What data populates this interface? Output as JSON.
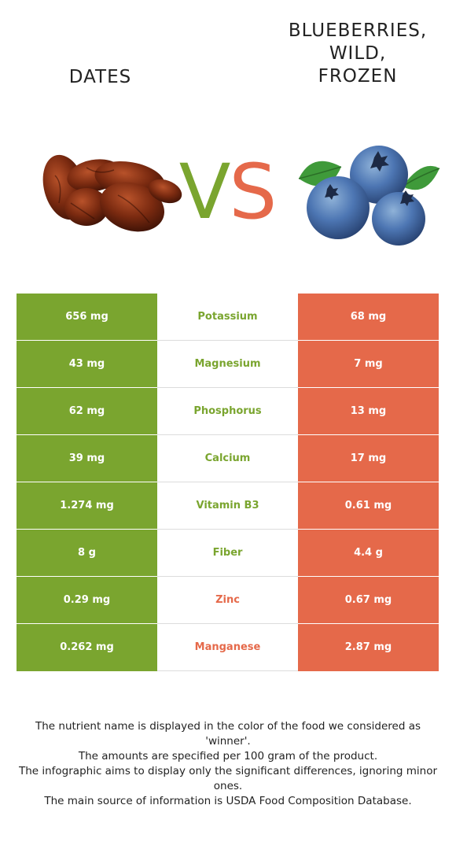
{
  "foods": {
    "left": {
      "name": "DATES",
      "color": "#7aa52f",
      "image_icon": "dates-image"
    },
    "right": {
      "name": "BLUEBERRIES,\nWILD,\nFROZEN",
      "color": "#e5694a",
      "image_icon": "blueberries-image"
    }
  },
  "vs": {
    "v": "V",
    "s": "S"
  },
  "rows": [
    {
      "left": "656 mg",
      "nutrient": "Potassium",
      "right": "68 mg",
      "winner": "left"
    },
    {
      "left": "43 mg",
      "nutrient": "Magnesium",
      "right": "7 mg",
      "winner": "left"
    },
    {
      "left": "62 mg",
      "nutrient": "Phosphorus",
      "right": "13 mg",
      "winner": "left"
    },
    {
      "left": "39 mg",
      "nutrient": "Calcium",
      "right": "17 mg",
      "winner": "left"
    },
    {
      "left": "1.274 mg",
      "nutrient": "Vitamin B3",
      "right": "0.61 mg",
      "winner": "left"
    },
    {
      "left": "8 g",
      "nutrient": "Fiber",
      "right": "4.4 g",
      "winner": "left"
    },
    {
      "left": "0.29 mg",
      "nutrient": "Zinc",
      "right": "0.67 mg",
      "winner": "right"
    },
    {
      "left": "0.262 mg",
      "nutrient": "Manganese",
      "right": "2.87 mg",
      "winner": "right"
    }
  ],
  "footnote": [
    "The nutrient name is displayed in the color of the food we considered as 'winner'.",
    "The amounts are specified per 100 gram of the product.",
    "The infographic aims to display only the significant differences, ignoring minor ones.",
    "The main source of information is USDA Food Composition Database."
  ]
}
